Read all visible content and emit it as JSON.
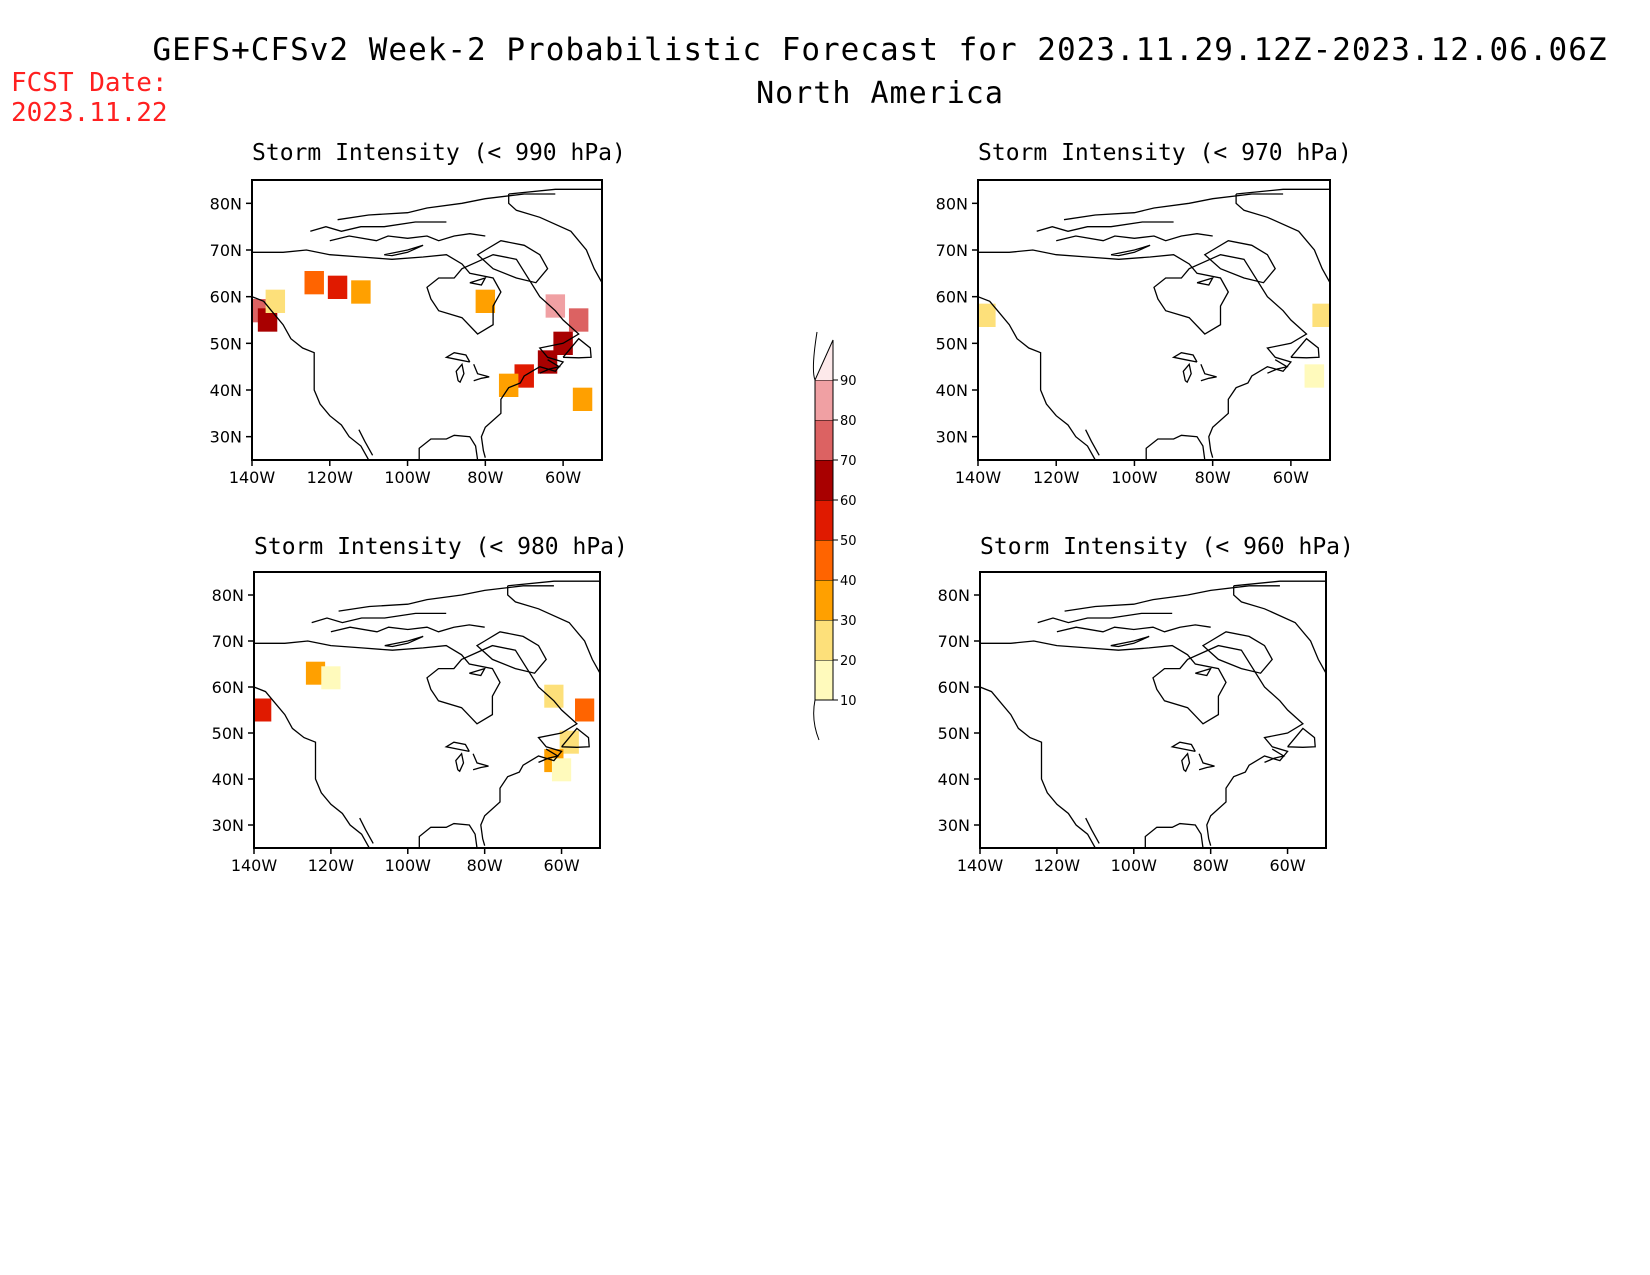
{
  "title": "GEFS+CFSv2 Week-2 Probabilistic Forecast for 2023.11.29.12Z-2023.12.06.06Z",
  "subtitle": "North America",
  "fcst_date_label": "FCST Date:",
  "fcst_date": "2023.11.22",
  "panels": [
    {
      "id": "p990",
      "title": "Storm Intensity (< 990 hPa)"
    },
    {
      "id": "p970",
      "title": "Storm Intensity (< 970 hPa)"
    },
    {
      "id": "p980",
      "title": "Storm Intensity (< 980 hPa)"
    },
    {
      "id": "p960",
      "title": "Storm Intensity (< 960 hPa)"
    }
  ],
  "axes": {
    "lat_labels": [
      "80N",
      "70N",
      "60N",
      "50N",
      "40N",
      "30N"
    ],
    "lon_labels": [
      "140W",
      "120W",
      "100W",
      "80W",
      "60W"
    ],
    "lat_values": [
      80,
      70,
      60,
      50,
      40,
      30
    ],
    "lon_values": [
      -140,
      -120,
      -100,
      -80,
      -60
    ],
    "lat_range": [
      25,
      85
    ],
    "lon_range": [
      -140,
      -50
    ]
  },
  "colorbar": {
    "labels": [
      "90",
      "80",
      "70",
      "60",
      "50",
      "40",
      "30",
      "20",
      "10"
    ],
    "colors": [
      "#fde9ea",
      "#f0a0a3",
      "#dc6262",
      "#a80000",
      "#e01a00",
      "#ff6400",
      "#ffa000",
      "#fde07a",
      "#fffabc"
    ]
  },
  "chart_data": {
    "type": "heatmap",
    "units": "probability (%)",
    "panels": [
      {
        "id": "p990",
        "cells": [
          {
            "lon": -138,
            "lat": 57,
            "value": 70
          },
          {
            "lon": -136,
            "lat": 55,
            "value": 60
          },
          {
            "lon": -134,
            "lat": 59,
            "value": 20
          },
          {
            "lon": -124,
            "lat": 63,
            "value": 40
          },
          {
            "lon": -118,
            "lat": 62,
            "value": 50
          },
          {
            "lon": -112,
            "lat": 61,
            "value": 30
          },
          {
            "lon": -80,
            "lat": 59,
            "value": 30
          },
          {
            "lon": -62,
            "lat": 58,
            "value": 80
          },
          {
            "lon": -56,
            "lat": 55,
            "value": 70
          },
          {
            "lon": -60,
            "lat": 50,
            "value": 60
          },
          {
            "lon": -64,
            "lat": 46,
            "value": 60
          },
          {
            "lon": -70,
            "lat": 43,
            "value": 50
          },
          {
            "lon": -74,
            "lat": 41,
            "value": 30
          },
          {
            "lon": -55,
            "lat": 38,
            "value": 30
          }
        ]
      },
      {
        "id": "p970",
        "cells": [
          {
            "lon": -138,
            "lat": 56,
            "value": 20
          },
          {
            "lon": -52,
            "lat": 56,
            "value": 20
          },
          {
            "lon": -54,
            "lat": 43,
            "value": 10
          }
        ]
      },
      {
        "id": "p980",
        "cells": [
          {
            "lon": -138,
            "lat": 55,
            "value": 50
          },
          {
            "lon": -124,
            "lat": 63,
            "value": 30
          },
          {
            "lon": -120,
            "lat": 62,
            "value": 10
          },
          {
            "lon": -62,
            "lat": 58,
            "value": 20
          },
          {
            "lon": -54,
            "lat": 55,
            "value": 40
          },
          {
            "lon": -58,
            "lat": 48,
            "value": 20
          },
          {
            "lon": -62,
            "lat": 44,
            "value": 30
          },
          {
            "lon": -60,
            "lat": 42,
            "value": 10
          }
        ]
      },
      {
        "id": "p960",
        "cells": []
      }
    ]
  }
}
